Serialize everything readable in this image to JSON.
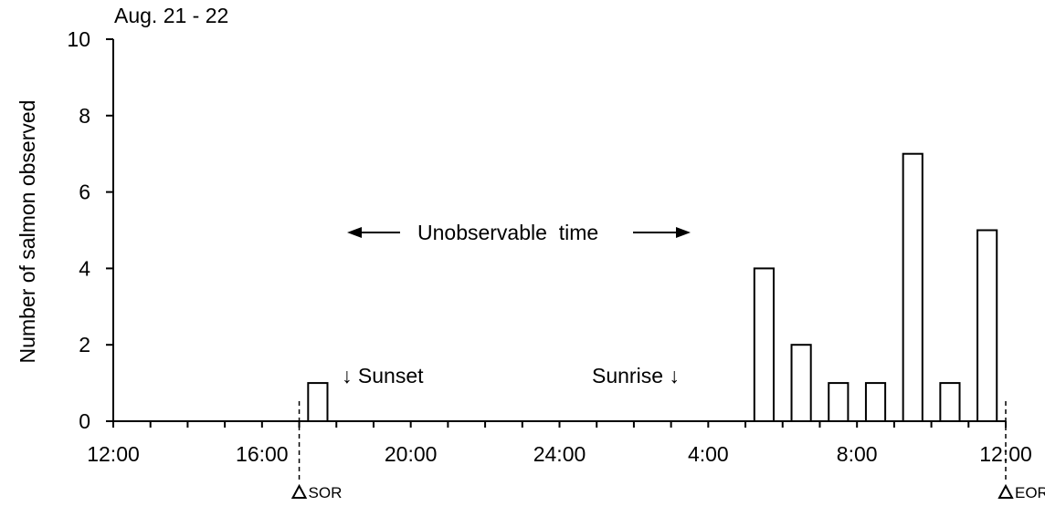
{
  "chart_data": {
    "type": "bar",
    "title": "Aug. 21 - 22",
    "ylabel": "Number of salmon observed",
    "xlabel": "",
    "xlim": [
      12,
      36
    ],
    "ylim": [
      0,
      10
    ],
    "yticks": [
      0,
      2,
      4,
      6,
      8,
      10
    ],
    "xtick_labels": [
      {
        "hour": 12,
        "label": "12:00"
      },
      {
        "hour": 16,
        "label": "16:00"
      },
      {
        "hour": 20,
        "label": "20:00"
      },
      {
        "hour": 24,
        "label": "24:00"
      },
      {
        "hour": 28,
        "label": "4:00"
      },
      {
        "hour": 32,
        "label": "8:00"
      },
      {
        "hour": 36,
        "label": "12:00"
      }
    ],
    "bars": [
      {
        "hour": 17.5,
        "value": 1
      },
      {
        "hour": 29.5,
        "value": 4
      },
      {
        "hour": 30.5,
        "value": 2
      },
      {
        "hour": 31.5,
        "value": 1
      },
      {
        "hour": 32.5,
        "value": 1
      },
      {
        "hour": 33.5,
        "value": 7
      },
      {
        "hour": 34.5,
        "value": 1
      },
      {
        "hour": 35.5,
        "value": 5
      }
    ],
    "annotations": {
      "unobservable": "Unobservable  time",
      "sunset": "↓ Sunset",
      "sunrise": "Sunrise ↓",
      "sor": "SOR",
      "eor": "EOR",
      "sor_hour": 17,
      "eor_hour": 36
    },
    "grid": false,
    "legend": "none"
  }
}
